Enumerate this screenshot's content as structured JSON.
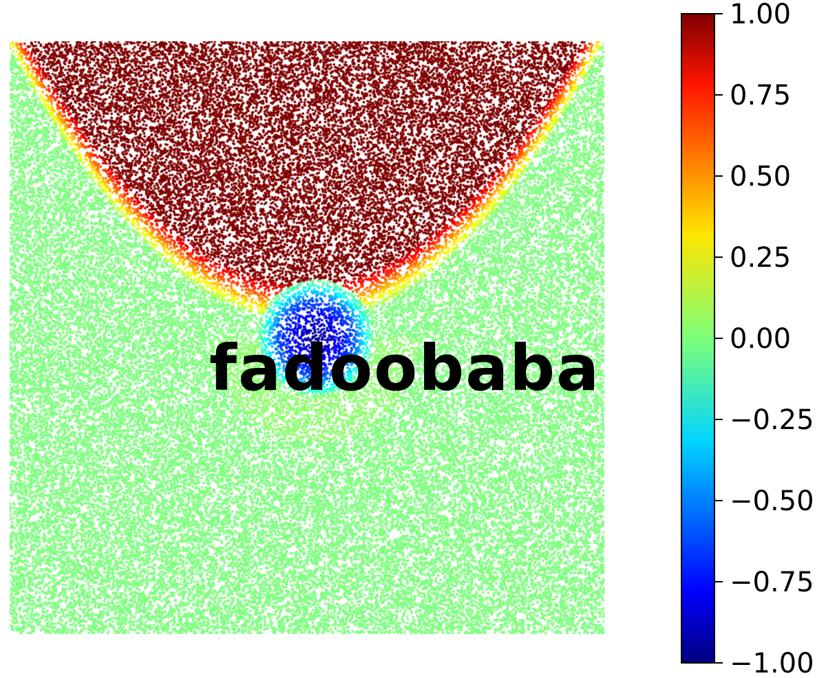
{
  "chart_data": {
    "type": "scatter",
    "description_of_field": "",
    "overlay_text": "fadoobaba",
    "colorbar": {
      "colormap": "jet",
      "range": [
        -1.0,
        1.0
      ],
      "ticks": [
        1.0,
        0.75,
        0.5,
        0.25,
        0.0,
        -0.25,
        -0.5,
        -0.75,
        -1.0
      ],
      "tick_labels": [
        "1.00",
        "0.75",
        "0.50",
        "0.25",
        "0.00",
        "−0.25",
        "−0.50",
        "−0.75",
        "−1.00"
      ]
    },
    "field": {
      "background_value": 0.0,
      "high_region": {
        "shape": "parabolic-bowl",
        "value": 1.0
      },
      "low_region": {
        "shape": "disc",
        "value": -1.0
      }
    },
    "grid": false,
    "axes_visible": false
  }
}
